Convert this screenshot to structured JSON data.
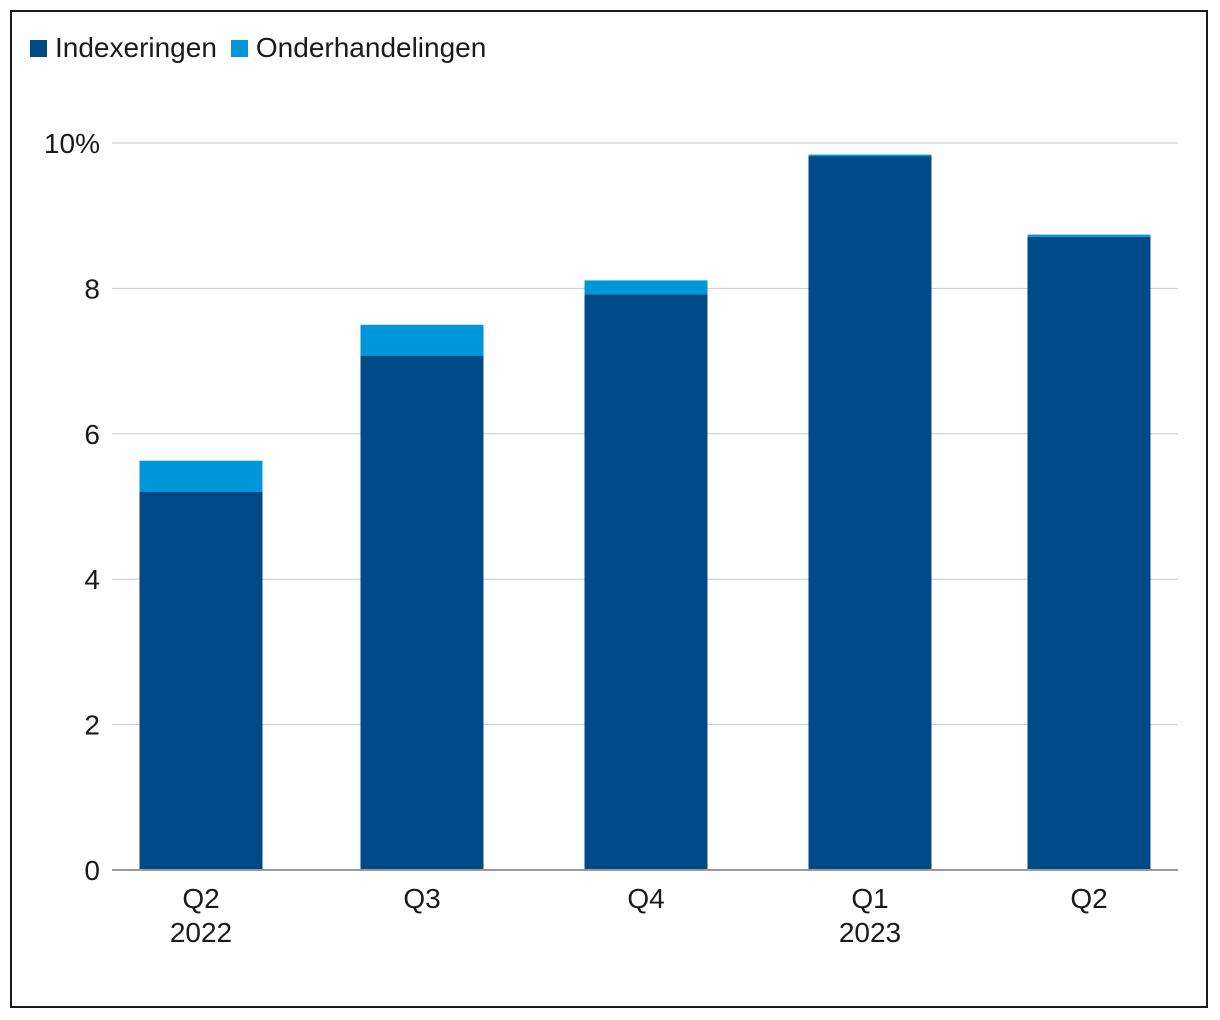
{
  "chart_data": {
    "type": "bar",
    "stacked": true,
    "title": "",
    "xlabel": "",
    "ylabel": "",
    "categories": [
      {
        "label": "Q2",
        "sublabel": "2022"
      },
      {
        "label": "Q3",
        "sublabel": ""
      },
      {
        "label": "Q4",
        "sublabel": ""
      },
      {
        "label": "Q1",
        "sublabel": "2023"
      },
      {
        "label": "Q2",
        "sublabel": ""
      }
    ],
    "series": [
      {
        "name": "Indexeringen",
        "color": "#004a87",
        "values": [
          5.2,
          7.07,
          7.92,
          9.82,
          8.71
        ]
      },
      {
        "name": "Onderhandelingen",
        "color": "#0096d8",
        "values": [
          0.43,
          0.43,
          0.19,
          0.02,
          0.03
        ]
      }
    ],
    "ylim": [
      0,
      10
    ],
    "yticks": [
      {
        "value": 0,
        "label": "0"
      },
      {
        "value": 2,
        "label": "2"
      },
      {
        "value": 4,
        "label": "4"
      },
      {
        "value": 6,
        "label": "6"
      },
      {
        "value": 8,
        "label": "8"
      },
      {
        "value": 10,
        "label": "10%"
      }
    ],
    "grid": true,
    "legend": "top-left",
    "gridColor": "#c8c8c8",
    "axisColor": "#9a9a9a"
  }
}
